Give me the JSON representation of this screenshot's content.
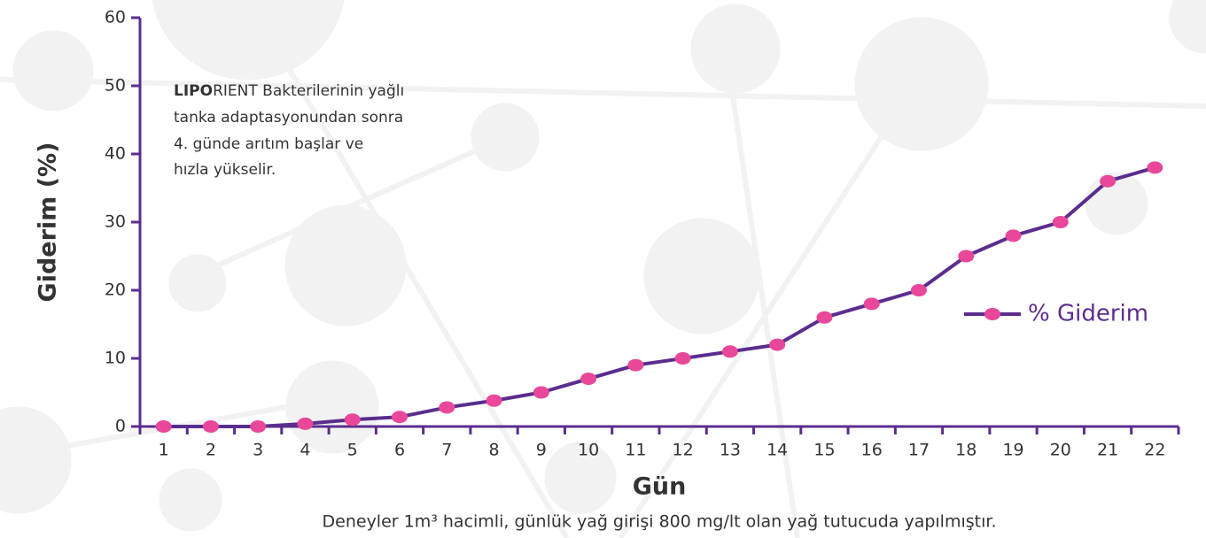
{
  "chart_data": {
    "type": "line",
    "x_label": "Gün",
    "y_label": "Giderim (%)",
    "annotation": {
      "bold": "LIPO",
      "lines": [
        "RIENT Bakterilerinin yağlı",
        "tanka adaptasyonundan sonra",
        "4. günde arıtım başlar ve",
        "hızla yükselir."
      ]
    },
    "footnote": "Deneyler 1m³ hacimli, günlük yağ girişi 800 mg/lt olan yağ tutucuda yapılmıştır.",
    "categories": [
      "1",
      "2",
      "3",
      "4",
      "5",
      "6",
      "7",
      "8",
      "9",
      "10",
      "11",
      "12",
      "13",
      "14",
      "15",
      "16",
      "17",
      "18",
      "19",
      "20",
      "21",
      "22"
    ],
    "series": [
      {
        "name": "% Giderim",
        "color": "#5b2d8e",
        "marker_color": "#e8479a",
        "values": [
          0,
          0,
          0,
          0.4,
          1,
          1.4,
          2.8,
          3.8,
          5,
          7,
          9,
          10,
          11,
          12,
          16,
          18,
          20,
          25,
          28,
          30,
          36,
          38
        ]
      }
    ],
    "ylim": [
      0,
      60
    ],
    "yticks": [
      0,
      10,
      20,
      30,
      40,
      50,
      60
    ],
    "legend": "right"
  }
}
